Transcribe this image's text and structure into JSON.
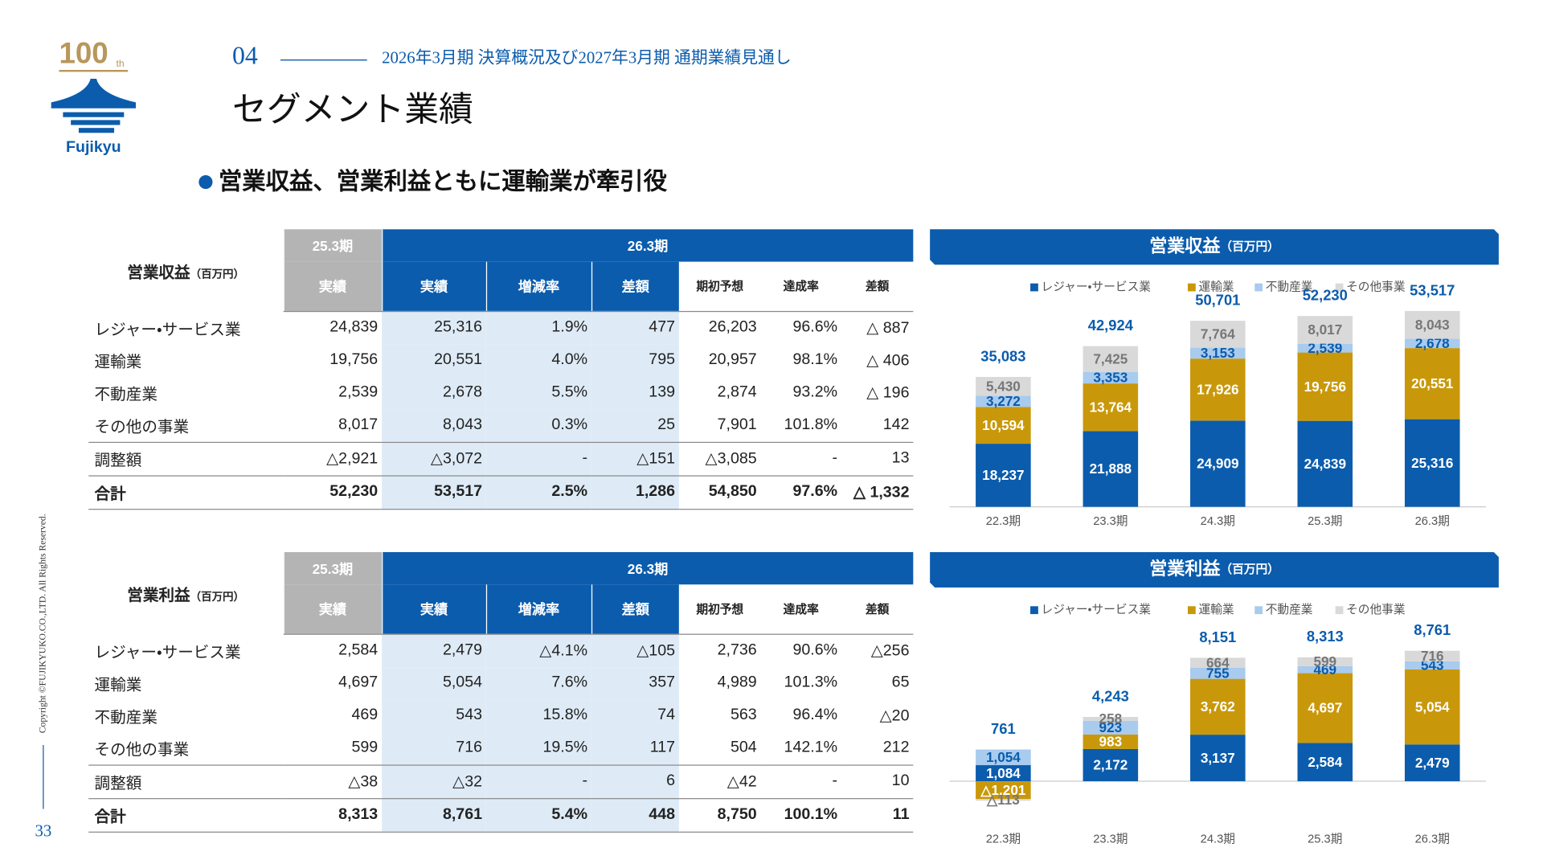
{
  "logo": {
    "number": "100",
    "suffix": "th",
    "name": "Fujikyu"
  },
  "header": {
    "section_number": "04",
    "section_title": "2026年3月期 決算概況及び2027年3月期 通期業績見通し",
    "title": "セグメント業績"
  },
  "headline": "営業収益、営業利益ともに運輸業が牽引役",
  "tables": [
    {
      "label": "営業収益",
      "unit": "（百万円）",
      "periods": [
        "25.3期",
        "26.3期"
      ],
      "columns": [
        "実績",
        "実績",
        "増減率",
        "差額",
        "期初予想",
        "達成率",
        "差額"
      ],
      "rows": [
        {
          "label": "レジャー・サービス業",
          "cells": [
            "24,839",
            "25,316",
            "1.9%",
            "477",
            "26,203",
            "96.6%",
            "△ 887"
          ]
        },
        {
          "label": "運輸業",
          "cells": [
            "19,756",
            "20,551",
            "4.0%",
            "795",
            "20,957",
            "98.1%",
            "△ 406"
          ]
        },
        {
          "label": "不動産業",
          "cells": [
            "2,539",
            "2,678",
            "5.5%",
            "139",
            "2,874",
            "93.2%",
            "△ 196"
          ]
        },
        {
          "label": "その他の事業",
          "cells": [
            "8,017",
            "8,043",
            "0.3%",
            "25",
            "7,901",
            "101.8%",
            "142"
          ]
        },
        {
          "label": "調整額",
          "cells": [
            "△2,921",
            "△3,072",
            "-",
            "△151",
            "△3,085",
            "-",
            "13"
          ]
        },
        {
          "label": "合計",
          "cells": [
            "52,230",
            "53,517",
            "2.5%",
            "1,286",
            "54,850",
            "97.6%",
            "△ 1,332"
          ]
        }
      ]
    },
    {
      "label": "営業利益",
      "unit": "（百万円）",
      "periods": [
        "25.3期",
        "26.3期"
      ],
      "columns": [
        "実績",
        "実績",
        "増減率",
        "差額",
        "期初予想",
        "達成率",
        "差額"
      ],
      "rows": [
        {
          "label": "レジャー・サービス業",
          "cells": [
            "2,584",
            "2,479",
            "△4.1%",
            "△105",
            "2,736",
            "90.6%",
            "△256"
          ]
        },
        {
          "label": "運輸業",
          "cells": [
            "4,697",
            "5,054",
            "7.6%",
            "357",
            "4,989",
            "101.3%",
            "65"
          ]
        },
        {
          "label": "不動産業",
          "cells": [
            "469",
            "543",
            "15.8%",
            "74",
            "563",
            "96.4%",
            "△20"
          ]
        },
        {
          "label": "その他の事業",
          "cells": [
            "599",
            "716",
            "19.5%",
            "117",
            "504",
            "142.1%",
            "212"
          ]
        },
        {
          "label": "調整額",
          "cells": [
            "△38",
            "△32",
            "-",
            "6",
            "△42",
            "-",
            "10"
          ]
        },
        {
          "label": "合計",
          "cells": [
            "8,313",
            "8,761",
            "5.4%",
            "448",
            "8,750",
            "100.1%",
            "11"
          ]
        }
      ]
    }
  ],
  "chart_data": [
    {
      "type": "stacked_bar",
      "title": "営業収益",
      "unit": "（百万円）",
      "categories": [
        "22.3期",
        "23.3期",
        "24.3期",
        "25.3期",
        "26.3期"
      ],
      "ylim": [
        0,
        60000
      ],
      "series": [
        {
          "name": "レジャー・サービス業",
          "color": "#0b5cad",
          "values": [
            18237,
            21888,
            24909,
            24839,
            25316
          ],
          "value_labels": [
            "18,237",
            "21,888",
            "24,909",
            "24,839",
            "25,316"
          ]
        },
        {
          "name": "運輸業",
          "color": "#c9980a",
          "values": [
            10594,
            13764,
            17926,
            19756,
            20551
          ],
          "value_labels": [
            "10,594",
            "13,764",
            "17,926",
            "19,756",
            "20,551"
          ]
        },
        {
          "name": "不動産業",
          "color": "#a8cbee",
          "values": [
            3272,
            3353,
            3153,
            2539,
            2678
          ],
          "value_labels": [
            "3,272",
            "3,353",
            "3,153",
            "2,539",
            "2,678"
          ]
        },
        {
          "name": "その他事業",
          "color": "#d9d9d9",
          "values": [
            5430,
            7425,
            7764,
            8017,
            8043
          ],
          "value_labels": [
            "5,430",
            "7,425",
            "7,764",
            "8,017",
            "8,043"
          ]
        }
      ],
      "totals": {
        "values": [
          35083,
          42924,
          50701,
          52230,
          53517
        ],
        "value_labels": [
          "35,083",
          "42,924",
          "50,701",
          "52,230",
          "53,517"
        ]
      }
    },
    {
      "type": "stacked_bar",
      "title": "営業利益",
      "unit": "（百万円）",
      "categories": [
        "22.3期",
        "23.3期",
        "24.3期",
        "25.3期",
        "26.3期"
      ],
      "ylim": [
        -2000,
        10000
      ],
      "series": [
        {
          "name": "レジャー・サービス業",
          "color": "#0b5cad",
          "values": [
            1084,
            2172,
            3137,
            2584,
            2479
          ],
          "value_labels": [
            "1,084",
            "2,172",
            "3,137",
            "2,584",
            "2,479"
          ]
        },
        {
          "name": "運輸業",
          "color": "#c9980a",
          "values": [
            -1201,
            983,
            3762,
            4697,
            5054
          ],
          "value_labels": [
            "△1,201",
            "983",
            "3,762",
            "4,697",
            "5,054"
          ]
        },
        {
          "name": "不動産業",
          "color": "#a8cbee",
          "values": [
            1054,
            923,
            755,
            469,
            543
          ],
          "value_labels": [
            "1,054",
            "923",
            "755",
            "469",
            "543"
          ]
        },
        {
          "name": "その他事業",
          "color": "#d9d9d9",
          "values": [
            -113,
            258,
            664,
            599,
            716
          ],
          "value_labels": [
            "△113",
            "258",
            "664",
            "599",
            "716"
          ]
        }
      ],
      "totals": {
        "values": [
          761,
          4243,
          8151,
          8313,
          8761
        ],
        "value_labels": [
          "761",
          "4,243",
          "8,151",
          "8,313",
          "8,761"
        ]
      }
    }
  ],
  "copyright": "Copyright ©FUJIKYUKO.CO.,LTD. All Rights Reserved.",
  "page_number": "33"
}
